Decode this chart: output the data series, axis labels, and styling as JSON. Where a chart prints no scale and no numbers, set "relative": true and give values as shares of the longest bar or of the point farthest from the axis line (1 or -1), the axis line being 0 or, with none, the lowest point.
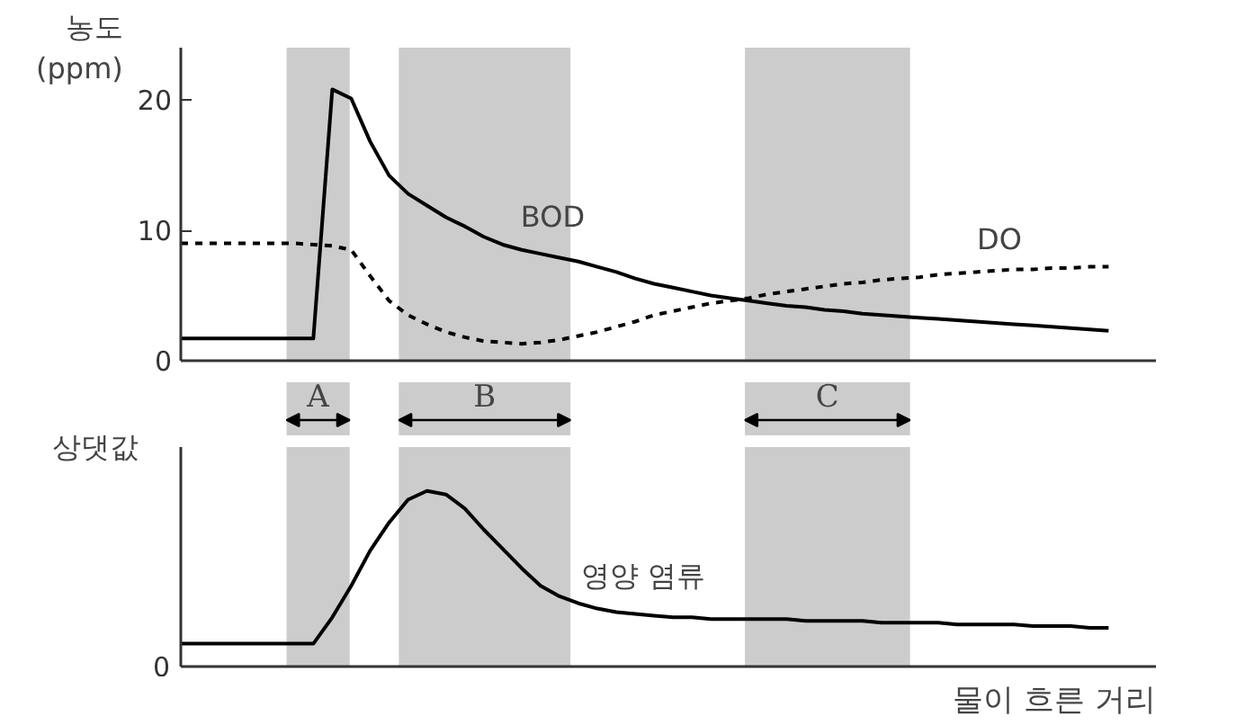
{
  "chart_data": [
    {
      "type": "line",
      "ylabel": "농도\n(ppm)",
      "categories": [
        null,
        null,
        null,
        null,
        null,
        null,
        null,
        null,
        null,
        null,
        null,
        null,
        null,
        null,
        null,
        null,
        null,
        null,
        null,
        null,
        null,
        null,
        null,
        null,
        null,
        null,
        null,
        null,
        null,
        null,
        null,
        null,
        null,
        null,
        null,
        null,
        null,
        null,
        null,
        null,
        null,
        null,
        null,
        null,
        null,
        null,
        null,
        null,
        null,
        null
      ],
      "ylim": [
        0,
        24
      ],
      "yticks": [
        0,
        10,
        20
      ],
      "tick_labels": "y",
      "line_style": "solid",
      "series": [
        {
          "name": "BOD",
          "color": "#000000",
          "values": [
            1.7,
            1.7,
            1.7,
            1.7,
            1.7,
            1.7,
            1.7,
            1.7,
            20.8,
            20.1,
            16.8,
            14.2,
            12.8,
            11.9,
            11.0,
            10.3,
            9.5,
            8.9,
            8.5,
            8.2,
            7.9,
            7.6,
            7.2,
            6.8,
            6.3,
            5.9,
            5.6,
            5.3,
            5.0,
            4.8,
            4.6,
            4.4,
            4.2,
            4.1,
            3.9,
            3.8,
            3.6,
            3.5,
            3.4,
            3.3,
            3.2,
            3.1,
            3.0,
            2.9,
            2.8,
            2.7,
            2.6,
            2.5,
            2.4,
            2.3
          ]
        },
        {
          "name": "DO",
          "color": "#000000",
          "line_style": "dashed",
          "values": [
            9,
            9,
            9,
            9,
            9,
            9,
            9.0,
            8.9,
            8.8,
            8.5,
            6.5,
            4.6,
            3.5,
            2.8,
            2.2,
            1.8,
            1.5,
            1.4,
            1.3,
            1.4,
            1.6,
            1.9,
            2.2,
            2.6,
            3.0,
            3.5,
            3.8,
            4.1,
            4.4,
            4.6,
            4.8,
            5.1,
            5.3,
            5.5,
            5.7,
            5.9,
            6.0,
            6.2,
            6.3,
            6.4,
            6.6,
            6.7,
            6.8,
            6.9,
            7.0,
            7.0,
            7.1,
            7.1,
            7.2,
            7.2
          ]
        }
      ],
      "annotations": [
        "A",
        "B",
        "C"
      ]
    },
    {
      "type": "line",
      "ylabel": "상댓값",
      "xlabel": "물이 흐른 거리",
      "relative": true,
      "categories": [
        null,
        null,
        null,
        null,
        null,
        null,
        null,
        null,
        null,
        null,
        null,
        null,
        null,
        null,
        null,
        null,
        null,
        null,
        null,
        null,
        null,
        null,
        null,
        null,
        null,
        null,
        null,
        null,
        null,
        null,
        null,
        null,
        null,
        null,
        null,
        null,
        null,
        null,
        null,
        null,
        null,
        null,
        null,
        null,
        null,
        null,
        null,
        null,
        null,
        null
      ],
      "line_style": "solid",
      "annotations": [
        "0"
      ],
      "series": [
        {
          "name": "영양 염류",
          "color": "#000000",
          "values": [
            0.13,
            0.13,
            0.13,
            0.13,
            0.13,
            0.13,
            0.13,
            0.13,
            0.28,
            0.46,
            0.66,
            0.82,
            0.95,
            1.0,
            0.98,
            0.9,
            0.78,
            0.67,
            0.56,
            0.46,
            0.4,
            0.36,
            0.33,
            0.31,
            0.3,
            0.29,
            0.28,
            0.28,
            0.27,
            0.27,
            0.27,
            0.27,
            0.27,
            0.26,
            0.26,
            0.26,
            0.26,
            0.25,
            0.25,
            0.25,
            0.25,
            0.24,
            0.24,
            0.24,
            0.24,
            0.23,
            0.23,
            0.23,
            0.22,
            0.22
          ]
        }
      ]
    }
  ]
}
